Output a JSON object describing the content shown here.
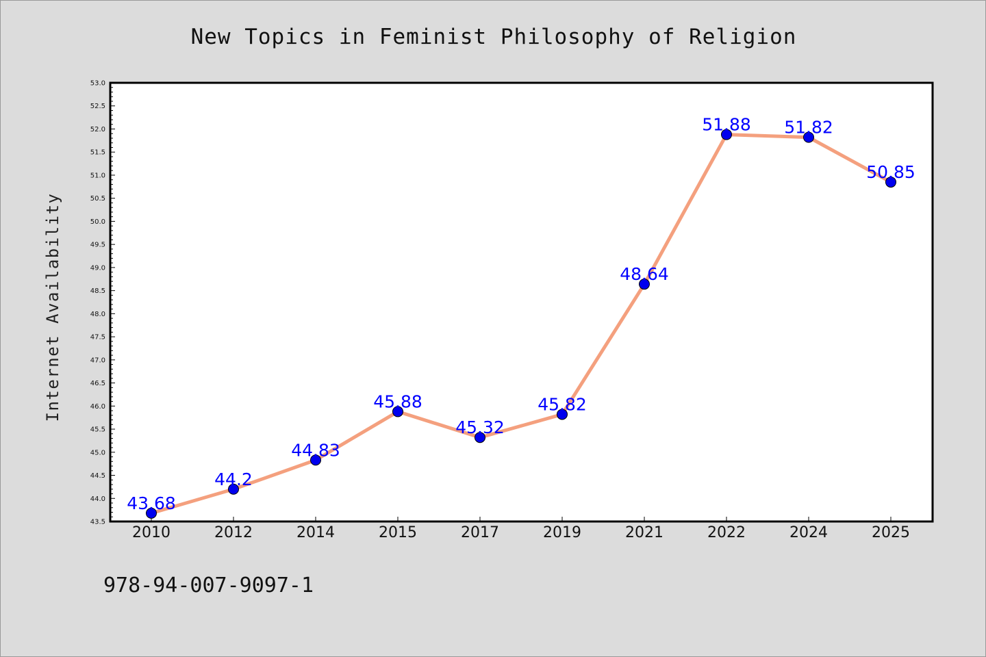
{
  "chart_data": {
    "type": "line",
    "title": "New Topics in Feminist Philosophy of Religion",
    "ylabel": "Internet Availability",
    "xlabel": "",
    "categories": [
      "2010",
      "2012",
      "2014",
      "2015",
      "2017",
      "2019",
      "2021",
      "2022",
      "2024",
      "2025"
    ],
    "series": [
      {
        "values": [
          43.68,
          44.2,
          44.83,
          45.88,
          45.32,
          45.82,
          48.64,
          51.88,
          51.82,
          50.85
        ],
        "labels": [
          "43.68",
          "44.2",
          "44.83",
          "45.88",
          "45.32",
          "45.82",
          "48.64",
          "51.88",
          "51.82",
          "50.85"
        ],
        "line_color": "#f4a07e",
        "marker_color": "#0000ee"
      }
    ],
    "ylim": [
      43.5,
      53.0
    ],
    "yticks": [
      "43.5",
      "44.0",
      "44.5",
      "45.0",
      "45.5",
      "46.0",
      "46.5",
      "47.0",
      "47.5",
      "48.0",
      "48.5",
      "49.0",
      "49.5",
      "50.0",
      "50.5",
      "51.0",
      "51.5",
      "52.0",
      "52.5",
      "53.0"
    ],
    "grid": false,
    "legend": "none",
    "colors": {
      "background": "#dcdcdc",
      "plot_background": "#ffffff",
      "data_label": "#0000ff"
    }
  },
  "footer": {
    "isbn": "978-94-007-9097-1"
  }
}
